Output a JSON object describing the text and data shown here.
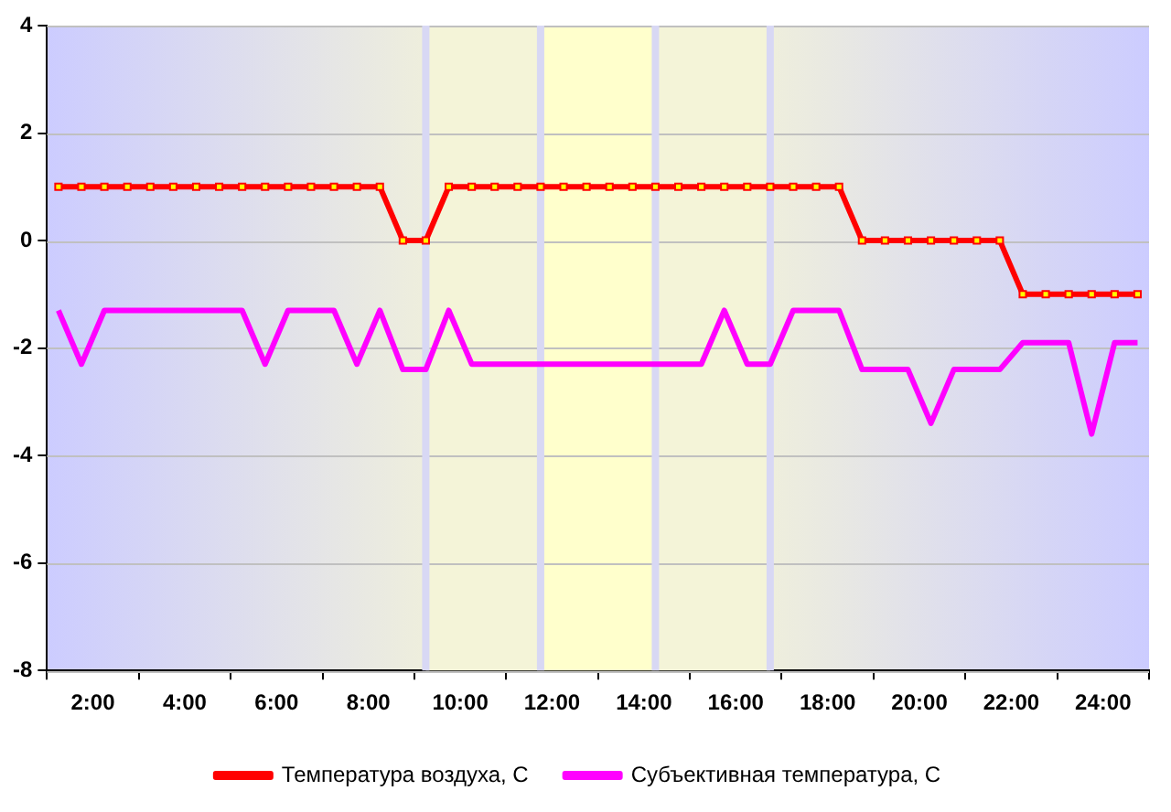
{
  "chart_data": {
    "type": "line",
    "x": [
      1.25,
      1.75,
      2.25,
      2.75,
      3.25,
      3.75,
      4.25,
      4.75,
      5.25,
      5.75,
      6.25,
      6.75,
      7.25,
      7.75,
      8.25,
      8.75,
      9.25,
      9.75,
      10.25,
      10.75,
      11.25,
      11.75,
      12.25,
      12.75,
      13.25,
      13.75,
      14.25,
      14.75,
      15.25,
      15.75,
      16.25,
      16.75,
      17.25,
      17.75,
      18.25,
      18.75,
      19.25,
      19.75,
      20.25,
      20.75,
      21.25,
      21.75,
      22.25,
      22.75,
      23.25,
      23.75,
      24.25,
      24.75
    ],
    "series": [
      {
        "name": "Температура воздуха, С",
        "color": "#ff0000",
        "marker": "square",
        "values": [
          1,
          1,
          1,
          1,
          1,
          1,
          1,
          1,
          1,
          1,
          1,
          1,
          1,
          1,
          1,
          0,
          0,
          1,
          1,
          1,
          1,
          1,
          1,
          1,
          1,
          1,
          1,
          1,
          1,
          1,
          1,
          1,
          1,
          1,
          1,
          0,
          0,
          0,
          0,
          0,
          0,
          0,
          -1,
          -1,
          -1,
          -1,
          -1,
          -1
        ]
      },
      {
        "name": "Субъективная температура, С",
        "color": "#ff00ff",
        "marker": "none",
        "values": [
          -1.3,
          -2.3,
          -1.3,
          -1.3,
          -1.3,
          -1.3,
          -1.3,
          -1.3,
          -1.3,
          -2.3,
          -1.3,
          -1.3,
          -1.3,
          -2.3,
          -1.3,
          -2.4,
          -2.4,
          -1.3,
          -2.3,
          -2.3,
          -2.3,
          -2.3,
          -2.3,
          -2.3,
          -2.3,
          -2.3,
          -2.3,
          -2.3,
          -2.3,
          -1.3,
          -2.3,
          -2.3,
          -1.3,
          -1.3,
          -1.3,
          -2.4,
          -2.4,
          -2.4,
          -3.4,
          -2.4,
          -2.4,
          -2.4,
          -1.9,
          -1.9,
          -1.9,
          -3.6,
          -1.9,
          -1.9
        ]
      }
    ],
    "xlim": [
      1,
      25
    ],
    "xticks": [
      {
        "value": 1,
        "label": null
      },
      {
        "value": 2,
        "label": "2:00"
      },
      {
        "value": 3,
        "label": null
      },
      {
        "value": 4,
        "label": "4:00"
      },
      {
        "value": 5,
        "label": null
      },
      {
        "value": 6,
        "label": "6:00"
      },
      {
        "value": 7,
        "label": null
      },
      {
        "value": 8,
        "label": "8:00"
      },
      {
        "value": 9,
        "label": null
      },
      {
        "value": 10,
        "label": "10:00"
      },
      {
        "value": 11,
        "label": null
      },
      {
        "value": 12,
        "label": "12:00"
      },
      {
        "value": 13,
        "label": null
      },
      {
        "value": 14,
        "label": "14:00"
      },
      {
        "value": 15,
        "label": null
      },
      {
        "value": 16,
        "label": "16:00"
      },
      {
        "value": 17,
        "label": null
      },
      {
        "value": 18,
        "label": "18:00"
      },
      {
        "value": 19,
        "label": null
      },
      {
        "value": 20,
        "label": "20:00"
      },
      {
        "value": 21,
        "label": null
      },
      {
        "value": 22,
        "label": "22:00"
      },
      {
        "value": 23,
        "label": null
      },
      {
        "value": 24,
        "label": "24:00"
      },
      {
        "value": 25,
        "label": null
      }
    ],
    "ylim": [
      -8,
      4
    ],
    "yticks": [
      -8,
      -6,
      -4,
      -2,
      0,
      2,
      4
    ],
    "grid": "y",
    "legend": "bottom",
    "line_style": "solid",
    "bands": [
      {
        "axis": "x",
        "from": 9.25,
        "to": 11.75,
        "color": "#f4f4d8"
      },
      {
        "axis": "x",
        "from": 11.75,
        "to": 14.25,
        "color": "#ffffcc"
      },
      {
        "axis": "x",
        "from": 14.25,
        "to": 16.75,
        "color": "#f4f4d8"
      }
    ],
    "ref_lines": [
      {
        "axis": "x",
        "value": 9.25,
        "color": "#d8d8f4"
      },
      {
        "axis": "x",
        "value": 11.75,
        "color": "#d8d8f4"
      },
      {
        "axis": "x",
        "value": 14.25,
        "color": "#d8d8f4"
      },
      {
        "axis": "x",
        "value": 16.75,
        "color": "#d8d8f4"
      }
    ]
  }
}
